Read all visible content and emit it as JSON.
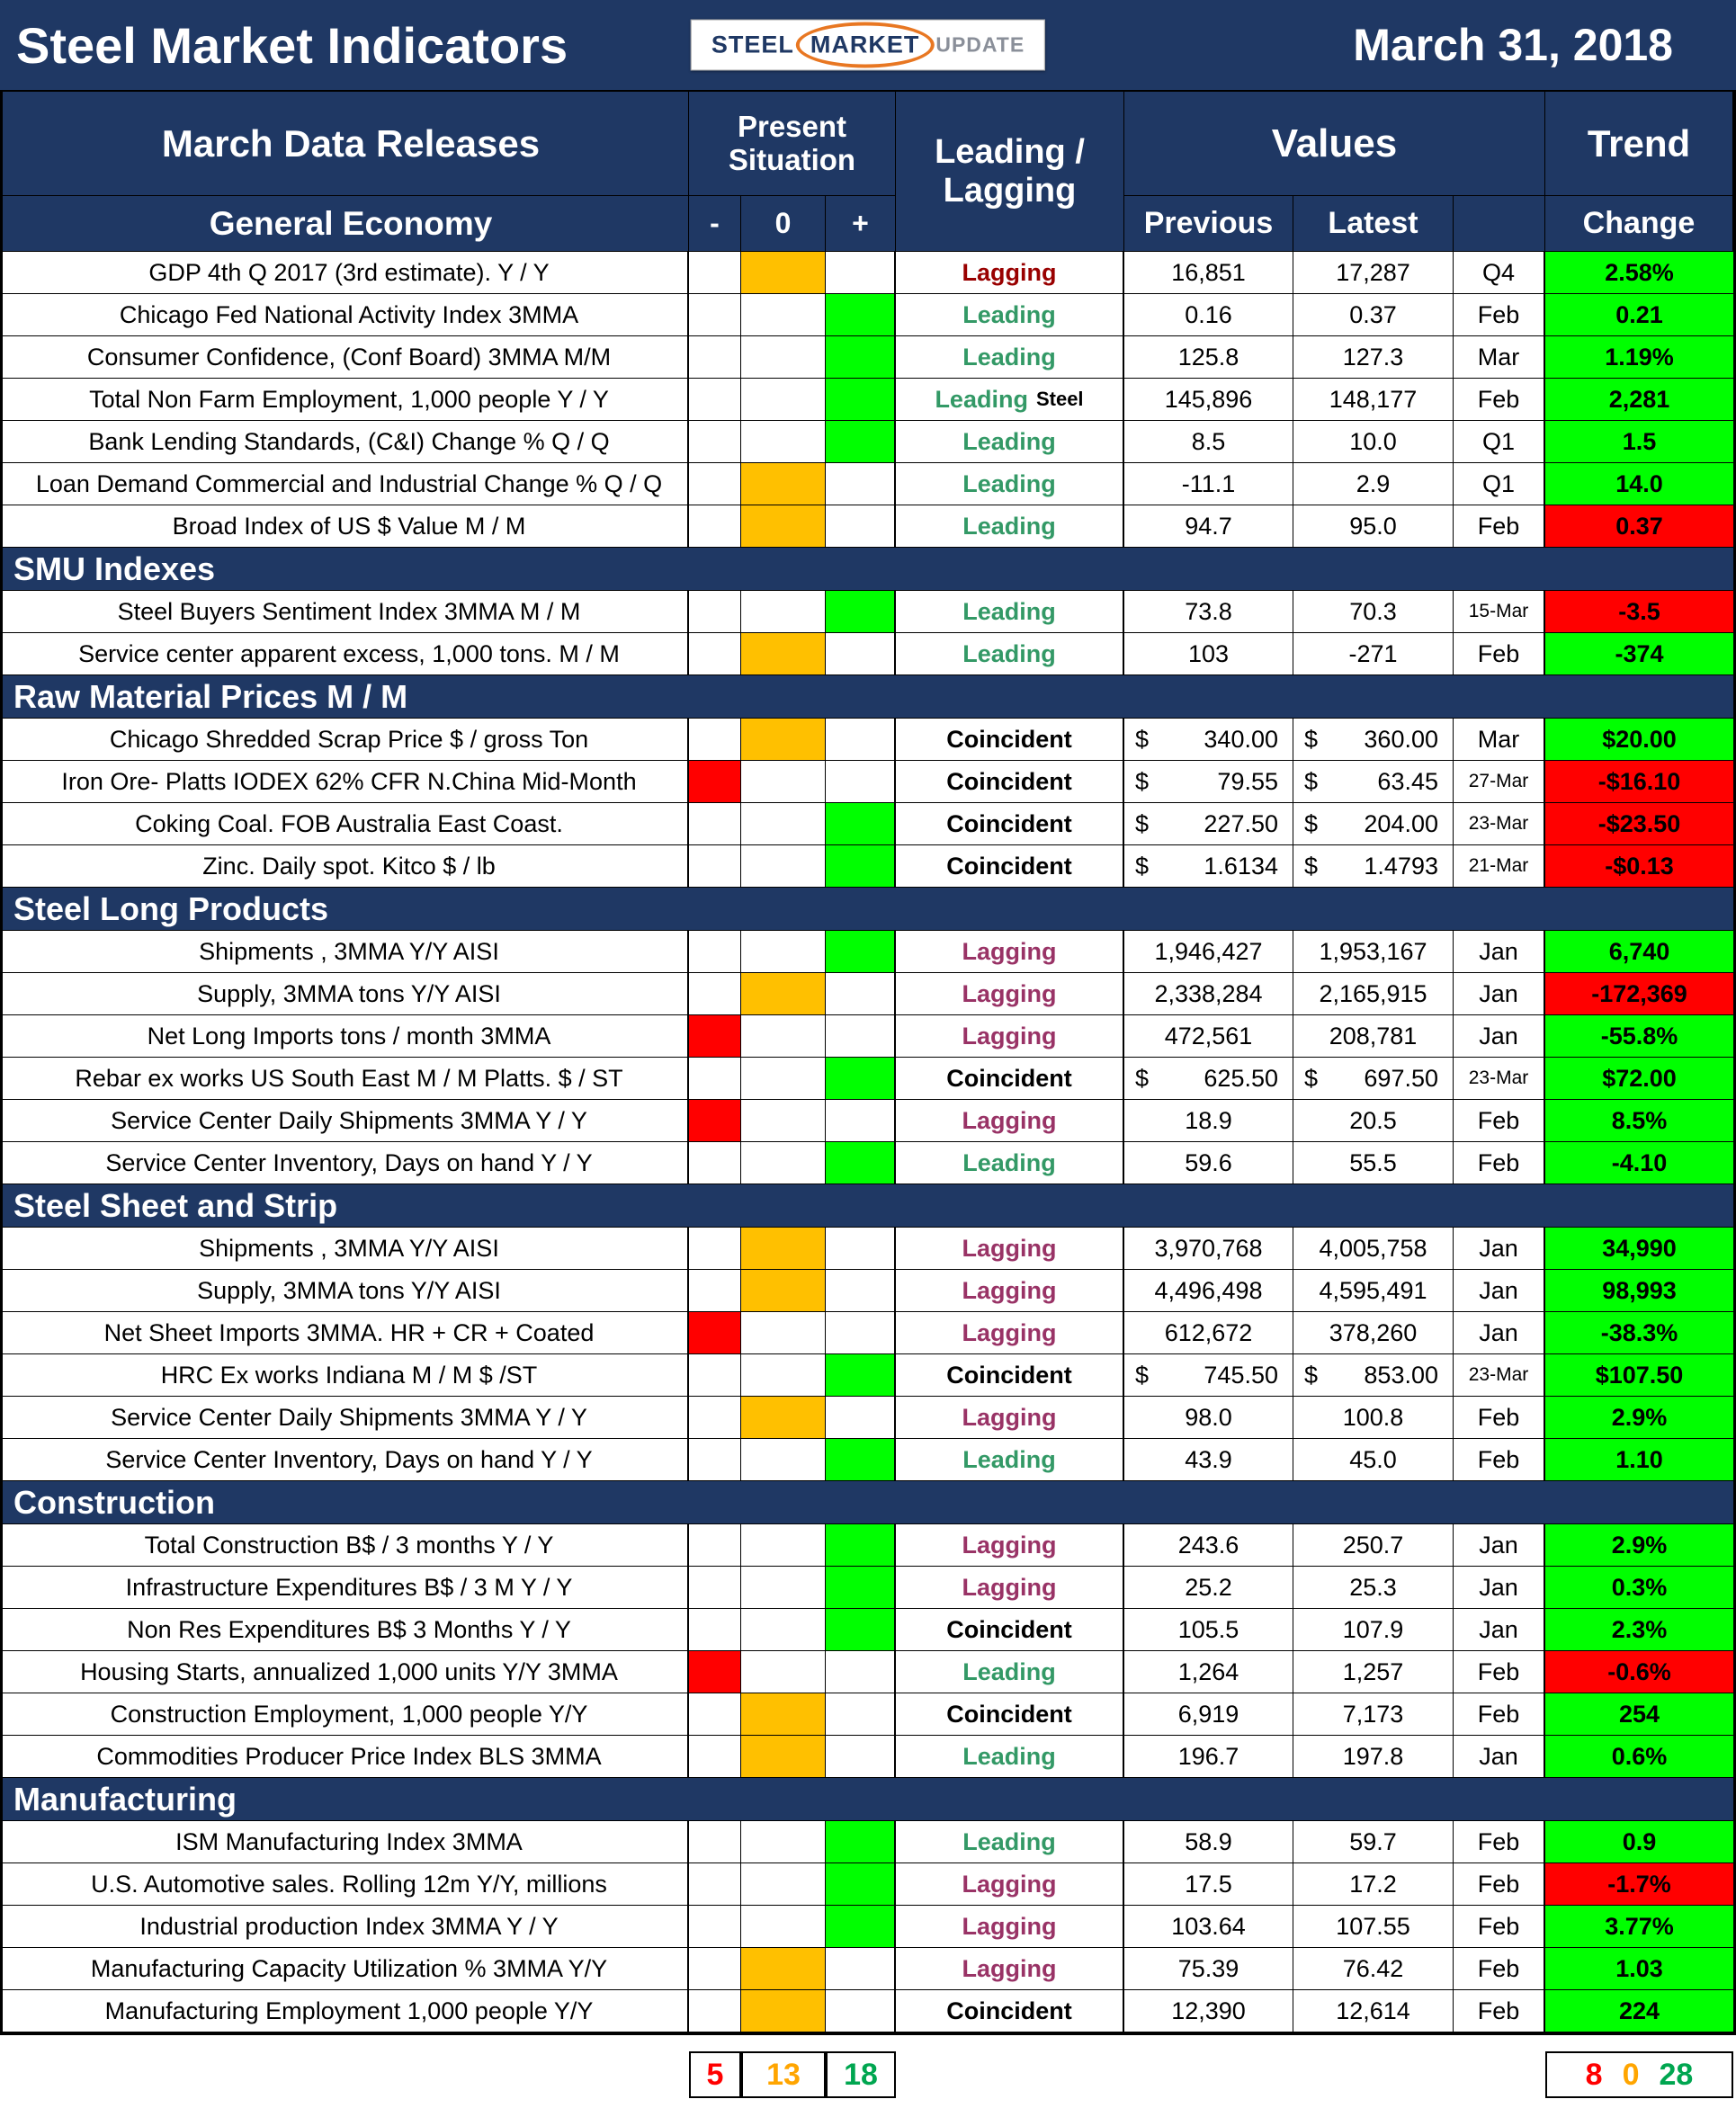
{
  "title_bar": {
    "title": "Steel Market Indicators",
    "date": "March 31, 2018",
    "logo": {
      "steel": "STEEL",
      "market": "MARKET",
      "update": "UPDATE"
    }
  },
  "header": {
    "releases": "March Data Releases",
    "present_situation": "Present Situation",
    "leading_lagging": "Leading / Lagging",
    "values": "Values",
    "trend": "Trend",
    "minus": "-",
    "zero": "0",
    "plus": "+",
    "previous": "Previous",
    "latest": "Latest",
    "change": "Change"
  },
  "currency_symbol": "$",
  "colors": {
    "navy": "#1F3864",
    "leading": "#339966",
    "lagging": "#993366",
    "lagging_dark": "#990000",
    "situation_minus": "#FF0000",
    "situation_zero": "#FFC000",
    "situation_plus": "#00FF00",
    "trend_up": "#00FF00",
    "trend_down": "#FF0000"
  },
  "sections": [
    {
      "name": "General Economy",
      "rows": [
        {
          "label": "GDP 4th Q 2017 (3rd estimate). Y / Y",
          "sit": "zero",
          "ll": "Lagging",
          "ll_type": "lagging-dark",
          "previous": "16,851",
          "latest": "17,287",
          "date": "Q4",
          "change": "2.58%",
          "trend": "green"
        },
        {
          "label": "Chicago Fed National Activity Index 3MMA",
          "sit": "plus",
          "ll": "Leading",
          "ll_type": "leading",
          "previous": "0.16",
          "latest": "0.37",
          "date": "Feb",
          "change": "0.21",
          "trend": "green"
        },
        {
          "label": "Consumer Confidence, (Conf Board) 3MMA M/M",
          "sit": "plus",
          "ll": "Leading",
          "ll_type": "leading",
          "previous": "125.8",
          "latest": "127.3",
          "date": "Mar",
          "change": "1.19%",
          "trend": "green"
        },
        {
          "label": "Total Non Farm Employment, 1,000 people Y / Y",
          "sit": "plus",
          "ll": "Leading",
          "ll_type": "leading",
          "ll_suffix": "Steel",
          "previous": "145,896",
          "latest": "148,177",
          "date": "Feb",
          "change": "2,281",
          "trend": "green"
        },
        {
          "label": "Bank Lending Standards, (C&I) Change % Q / Q",
          "sit": "plus",
          "ll": "Leading",
          "ll_type": "leading",
          "previous": "8.5",
          "latest": "10.0",
          "date": "Q1",
          "change": "1.5",
          "trend": "green"
        },
        {
          "label": "Loan Demand Commercial and Industrial Change % Q / Q",
          "sit": "zero",
          "ll": "Leading",
          "ll_type": "leading",
          "previous": "-11.1",
          "latest": "2.9",
          "date": "Q1",
          "change": "14.0",
          "trend": "green"
        },
        {
          "label": "Broad Index of US $ Value M / M",
          "sit": "zero",
          "ll": "Leading",
          "ll_type": "leading",
          "previous": "94.7",
          "latest": "95.0",
          "date": "Feb",
          "change": "0.37",
          "trend": "red"
        }
      ]
    },
    {
      "name": "SMU Indexes",
      "rows": [
        {
          "label": "Steel Buyers Sentiment Index 3MMA M / M",
          "sit": "plus",
          "ll": "Leading",
          "ll_type": "leading",
          "previous": "73.8",
          "latest": "70.3",
          "date": "15-Mar",
          "change": "-3.5",
          "trend": "red"
        },
        {
          "label": "Service center apparent excess, 1,000 tons. M / M",
          "sit": "zero",
          "ll": "Leading",
          "ll_type": "leading",
          "previous": "103",
          "latest": "-271",
          "date": "Feb",
          "change": "-374",
          "trend": "green"
        }
      ]
    },
    {
      "name": "Raw Material Prices M / M",
      "rows": [
        {
          "label": "Chicago Shredded Scrap Price $ / gross Ton",
          "sit": "zero",
          "ll": "Coincident",
          "ll_type": "coincident",
          "currency": true,
          "previous": "340.00",
          "latest": "360.00",
          "date": "Mar",
          "change": "$20.00",
          "trend": "green"
        },
        {
          "label": "Iron Ore- Platts IODEX 62% CFR N.China Mid-Month",
          "sit": "minus",
          "ll": "Coincident",
          "ll_type": "coincident",
          "currency": true,
          "previous": "79.55",
          "latest": "63.45",
          "date": "27-Mar",
          "change": "-$16.10",
          "trend": "red"
        },
        {
          "label": "Coking Coal. FOB Australia East Coast.",
          "sit": "plus",
          "ll": "Coincident",
          "ll_type": "coincident",
          "currency": true,
          "previous": "227.50",
          "latest": "204.00",
          "date": "23-Mar",
          "change": "-$23.50",
          "trend": "red"
        },
        {
          "label": "Zinc. Daily spot. Kitco $ / lb",
          "sit": "plus",
          "ll": "Coincident",
          "ll_type": "coincident",
          "currency": true,
          "previous": "1.6134",
          "latest": "1.4793",
          "date": "21-Mar",
          "change": "-$0.13",
          "trend": "red"
        }
      ]
    },
    {
      "name": "Steel Long Products",
      "rows": [
        {
          "label": "Shipments , 3MMA Y/Y AISI",
          "sit": "plus",
          "ll": "Lagging",
          "ll_type": "lagging",
          "previous": "1,946,427",
          "latest": "1,953,167",
          "date": "Jan",
          "change": "6,740",
          "trend": "green"
        },
        {
          "label": "Supply, 3MMA tons Y/Y AISI",
          "sit": "zero",
          "ll": "Lagging",
          "ll_type": "lagging",
          "previous": "2,338,284",
          "latest": "2,165,915",
          "date": "Jan",
          "change": "-172,369",
          "trend": "red"
        },
        {
          "label": "Net Long Imports tons / month 3MMA",
          "sit": "minus",
          "ll": "Lagging",
          "ll_type": "lagging",
          "previous": "472,561",
          "latest": "208,781",
          "date": "Jan",
          "change": "-55.8%",
          "trend": "green"
        },
        {
          "label": "Rebar ex works US South East M / M Platts. $ / ST",
          "sit": "plus",
          "ll": "Coincident",
          "ll_type": "coincident",
          "currency": true,
          "previous": "625.50",
          "latest": "697.50",
          "date": "23-Mar",
          "change": "$72.00",
          "trend": "green"
        },
        {
          "label": "Service Center Daily Shipments 3MMA Y / Y",
          "sit": "minus",
          "ll": "Lagging",
          "ll_type": "lagging",
          "previous": "18.9",
          "latest": "20.5",
          "date": "Feb",
          "change": "8.5%",
          "trend": "green"
        },
        {
          "label": "Service Center Inventory, Days on hand Y / Y",
          "sit": "plus",
          "ll": "Leading",
          "ll_type": "leading",
          "previous": "59.6",
          "latest": "55.5",
          "date": "Feb",
          "change": "-4.10",
          "trend": "green"
        }
      ]
    },
    {
      "name": "Steel Sheet and Strip",
      "rows": [
        {
          "label": "Shipments , 3MMA Y/Y AISI",
          "sit": "zero",
          "ll": "Lagging",
          "ll_type": "lagging",
          "previous": "3,970,768",
          "latest": "4,005,758",
          "date": "Jan",
          "change": "34,990",
          "trend": "green"
        },
        {
          "label": "Supply, 3MMA tons Y/Y AISI",
          "sit": "zero",
          "ll": "Lagging",
          "ll_type": "lagging",
          "previous": "4,496,498",
          "latest": "4,595,491",
          "date": "Jan",
          "change": "98,993",
          "trend": "green"
        },
        {
          "label": "Net Sheet Imports 3MMA. HR + CR + Coated",
          "sit": "minus",
          "ll": "Lagging",
          "ll_type": "lagging",
          "previous": "612,672",
          "latest": "378,260",
          "date": "Jan",
          "change": "-38.3%",
          "trend": "green"
        },
        {
          "label": "HRC Ex works Indiana M / M $ /ST",
          "sit": "plus",
          "ll": "Coincident",
          "ll_type": "coincident",
          "currency": true,
          "previous": "745.50",
          "latest": "853.00",
          "date": "23-Mar",
          "change": "$107.50",
          "trend": "green"
        },
        {
          "label": "Service Center Daily Shipments 3MMA Y / Y",
          "sit": "zero",
          "ll": "Lagging",
          "ll_type": "lagging",
          "previous": "98.0",
          "latest": "100.8",
          "date": "Feb",
          "change": "2.9%",
          "trend": "green"
        },
        {
          "label": "Service Center Inventory, Days on hand Y / Y",
          "sit": "plus",
          "ll": "Leading",
          "ll_type": "leading",
          "previous": "43.9",
          "latest": "45.0",
          "date": "Feb",
          "change": "1.10",
          "trend": "green"
        }
      ]
    },
    {
      "name": "Construction",
      "rows": [
        {
          "label": "Total Construction B$ / 3 months Y / Y",
          "sit": "plus",
          "ll": "Lagging",
          "ll_type": "lagging",
          "previous": "243.6",
          "latest": "250.7",
          "date": "Jan",
          "change": "2.9%",
          "trend": "green"
        },
        {
          "label": "Infrastructure Expenditures B$ / 3 M Y / Y",
          "sit": "plus",
          "ll": "Lagging",
          "ll_type": "lagging",
          "previous": "25.2",
          "latest": "25.3",
          "date": "Jan",
          "change": "0.3%",
          "trend": "green"
        },
        {
          "label": "Non Res Expenditures B$ 3 Months Y / Y",
          "sit": "plus",
          "ll": "Coincident",
          "ll_type": "coincident",
          "previous": "105.5",
          "latest": "107.9",
          "date": "Jan",
          "change": "2.3%",
          "trend": "green"
        },
        {
          "label": "Housing Starts, annualized 1,000 units Y/Y 3MMA",
          "sit": "minus",
          "ll": "Leading",
          "ll_type": "leading",
          "previous": "1,264",
          "latest": "1,257",
          "date": "Feb",
          "change": "-0.6%",
          "trend": "red"
        },
        {
          "label": "Construction Employment, 1,000 people Y/Y",
          "sit": "zero",
          "ll": "Coincident",
          "ll_type": "coincident",
          "previous": "6,919",
          "latest": "7,173",
          "date": "Feb",
          "change": "254",
          "trend": "green"
        },
        {
          "label": "Commodities Producer Price Index BLS 3MMA",
          "sit": "zero",
          "ll": "Leading",
          "ll_type": "leading",
          "previous": "196.7",
          "latest": "197.8",
          "date": "Jan",
          "change": "0.6%",
          "trend": "green"
        }
      ]
    },
    {
      "name": "Manufacturing",
      "rows": [
        {
          "label": "ISM Manufacturing Index 3MMA",
          "sit": "plus",
          "ll": "Leading",
          "ll_type": "leading",
          "previous": "58.9",
          "latest": "59.7",
          "date": "Feb",
          "change": "0.9",
          "trend": "green"
        },
        {
          "label": "U.S. Automotive sales. Rolling 12m Y/Y, millions",
          "sit": "plus",
          "ll": "Lagging",
          "ll_type": "lagging",
          "previous": "17.5",
          "latest": "17.2",
          "date": "Feb",
          "change": "-1.7%",
          "trend": "red"
        },
        {
          "label": "Industrial production Index 3MMA Y / Y",
          "sit": "plus",
          "ll": "Lagging",
          "ll_type": "lagging",
          "previous": "103.64",
          "latest": "107.55",
          "date": "Feb",
          "change": "3.77%",
          "trend": "green"
        },
        {
          "label": "Manufacturing Capacity Utilization % 3MMA Y/Y",
          "sit": "zero",
          "ll": "Lagging",
          "ll_type": "lagging",
          "previous": "75.39",
          "latest": "76.42",
          "date": "Feb",
          "change": "1.03",
          "trend": "green"
        },
        {
          "label": "Manufacturing Employment 1,000 people Y/Y",
          "sit": "zero",
          "ll": "Coincident",
          "ll_type": "coincident",
          "previous": "12,390",
          "latest": "12,614",
          "date": "Feb",
          "change": "224",
          "trend": "green"
        }
      ]
    }
  ],
  "footer": {
    "situation_minus": "5",
    "situation_zero": "13",
    "situation_plus": "18",
    "trend_down": "8",
    "trend_flat": "0",
    "trend_up": "28"
  }
}
